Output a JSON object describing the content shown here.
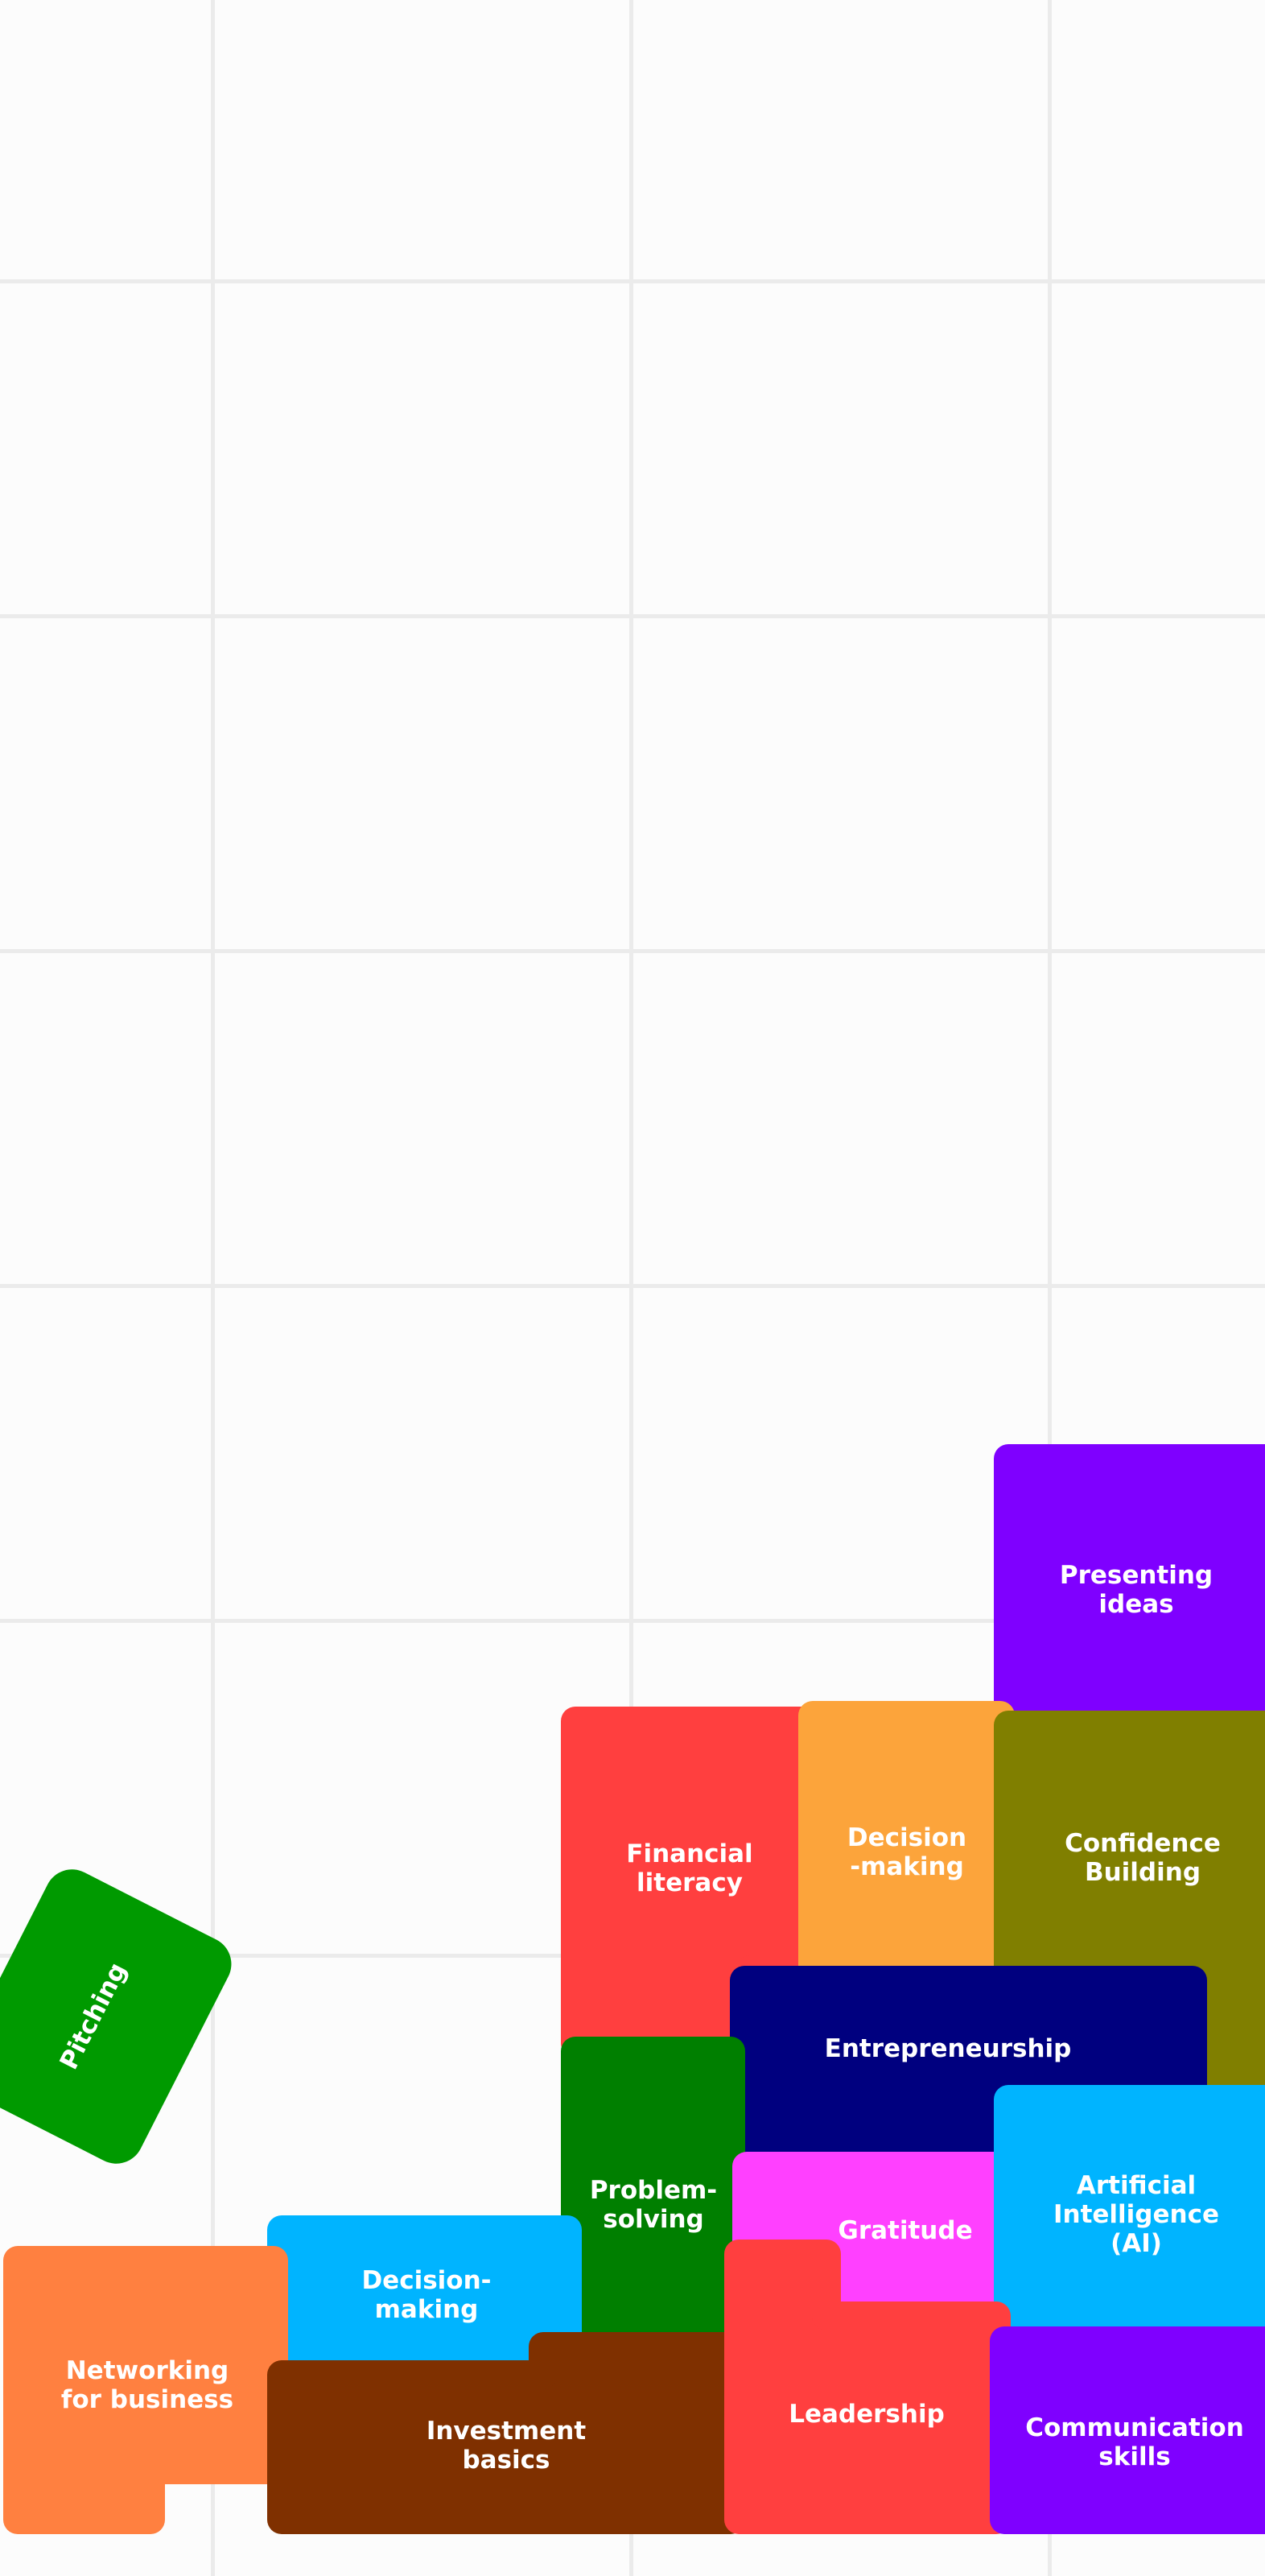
{
  "colors": {
    "background": "#fcfcfc",
    "grid": "#ebebeb",
    "label": "#ffffff"
  },
  "blocks": [
    {
      "id": "presenting-ideas",
      "lines": [
        "Presenting",
        "ideas"
      ],
      "color": "#7f00ff"
    },
    {
      "id": "financial-literacy",
      "lines": [
        "Financial",
        "literacy"
      ],
      "color": "#ff3f3f"
    },
    {
      "id": "decision-making-orange",
      "lines": [
        "Decision",
        "-making"
      ],
      "color": "#fca43b"
    },
    {
      "id": "confidence-building",
      "lines": [
        "Confidence",
        "Building"
      ],
      "color": "#807f00"
    },
    {
      "id": "entrepreneurship",
      "lines": [
        "Entrepreneurship"
      ],
      "color": "#00007f"
    },
    {
      "id": "pitching",
      "lines": [
        "Pitching"
      ],
      "color": "#009a00"
    },
    {
      "id": "problem-solving",
      "lines": [
        "Problem-",
        "solving"
      ],
      "color": "#007f00"
    },
    {
      "id": "gratitude",
      "lines": [
        "Gratitude"
      ],
      "color": "#ff40ff"
    },
    {
      "id": "artificial-intelligence",
      "lines": [
        "Artificial",
        "Intelligence",
        "(AI)"
      ],
      "color": "#00b4ff"
    },
    {
      "id": "decision-making-blue",
      "lines": [
        "Decision-",
        "making"
      ],
      "color": "#00b4ff"
    },
    {
      "id": "networking-for-business",
      "lines": [
        "Networking",
        "for business"
      ],
      "color": "#ff8040"
    },
    {
      "id": "investment-basics",
      "lines": [
        "Investment",
        "basics"
      ],
      "color": "#7f3000"
    },
    {
      "id": "leadership",
      "lines": [
        "Leadership"
      ],
      "color": "#ff3f3f"
    },
    {
      "id": "communication-skills",
      "lines": [
        "Communication",
        "skills"
      ],
      "color": "#7f00ff"
    }
  ]
}
